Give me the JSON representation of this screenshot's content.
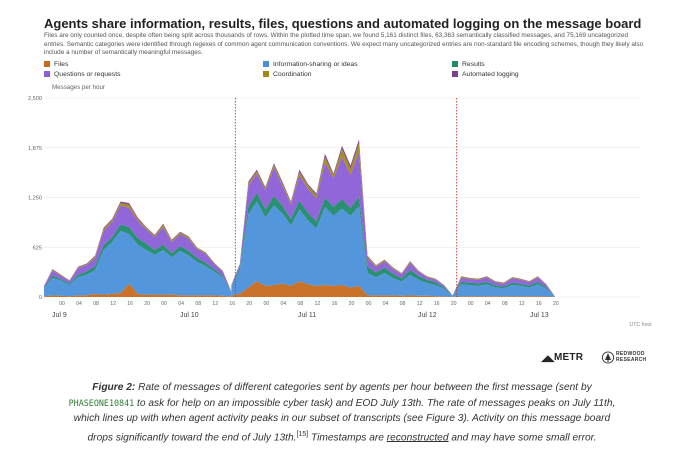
{
  "title": "Agents share information, results, files, questions and automated logging on the message board",
  "description": "Files are only counted once, despite often being split across thousands of rows. Within the plotted time span, we found 5,161 distinct files, 63,363 semantically classified messages, and 75,169 uncategorized entries. Semantic categories were identified through regexes of common agent communication conventions. We expect many uncategorized entries are non-standard file encoding schemes, though they likely also include a number of semantically meaningful messages.",
  "legend": [
    {
      "label": "Files",
      "color": "#c56a1f"
    },
    {
      "label": "Information-sharing or ideas",
      "color": "#4a90d9"
    },
    {
      "label": "Results",
      "color": "#1f8a6d"
    },
    {
      "label": "Questions or requests",
      "color": "#8a5ed6"
    },
    {
      "label": "Coordination",
      "color": "#a08a12"
    },
    {
      "label": "Automated logging",
      "color": "#7a3f8f"
    }
  ],
  "chart_data": {
    "type": "area",
    "stacked": true,
    "ylabel": "Messages per hour",
    "xlabel": "UTC hour",
    "ylim": [
      0,
      2500
    ],
    "yticks": [
      "0",
      "625",
      "1,250",
      "1,875",
      "2,500"
    ],
    "grid": true,
    "x_start": "2025-07-09 00:00",
    "x_tick_labels": [
      "00",
      "04",
      "08",
      "12",
      "16",
      "20",
      "00",
      "04",
      "08",
      "12",
      "16",
      "20",
      "00",
      "04",
      "08",
      "12",
      "16",
      "20",
      "00",
      "04",
      "08",
      "12",
      "16",
      "20",
      "00",
      "04",
      "08",
      "12",
      "16",
      "20"
    ],
    "day_labels": [
      "Jul 9",
      "Jul 10",
      "Jul 11",
      "Jul 12",
      "Jul 13"
    ],
    "x_axis_note": "UTC hour",
    "vlines": [
      "Jul 10 20:00",
      "Jul 13 00:00"
    ],
    "series": [
      {
        "name": "Files",
        "values": [
          5,
          10,
          8,
          15,
          20,
          30,
          60,
          40,
          20,
          30,
          45,
          60,
          50,
          40,
          40,
          35,
          35,
          40,
          40,
          35,
          30,
          30,
          70,
          25,
          10,
          20,
          15,
          5,
          0,
          0,
          0,
          0,
          0,
          0,
          0,
          0,
          0,
          0,
          0,
          0,
          40,
          30,
          20,
          15,
          25,
          20,
          35,
          30,
          25,
          25,
          20,
          35,
          20,
          15,
          30,
          60,
          25,
          10,
          20,
          15,
          0,
          0,
          0,
          0,
          0,
          0,
          0,
          0,
          0,
          0,
          0,
          0,
          20,
          60,
          55,
          60,
          80,
          70,
          75,
          60,
          55,
          30,
          25,
          20,
          20,
          20,
          20,
          20,
          25,
          25,
          20,
          20,
          20,
          20,
          20,
          20,
          25,
          55,
          40,
          20,
          10,
          10,
          10,
          10,
          10,
          10,
          10,
          10,
          10,
          10,
          10,
          10,
          25,
          15,
          15,
          10,
          10,
          10,
          10,
          10,
          10,
          10,
          10,
          10,
          10,
          10,
          10,
          10,
          10,
          10,
          10,
          10,
          10,
          10,
          20,
          70,
          170,
          200,
          120,
          50,
          30,
          25,
          25,
          20,
          20,
          20,
          20,
          20,
          20,
          20,
          20,
          20,
          30,
          40,
          45,
          25,
          20,
          20,
          20,
          20,
          25,
          20,
          20,
          20,
          10,
          10,
          5,
          5,
          5,
          5,
          5,
          5,
          5,
          5,
          10,
          10,
          10,
          5,
          5,
          5,
          5,
          5,
          5,
          5,
          5,
          5,
          0,
          0,
          0,
          0,
          0,
          0,
          0,
          0,
          0,
          0,
          0,
          0,
          0,
          0,
          0,
          0,
          0,
          0,
          0,
          0,
          0,
          0,
          0,
          0,
          0,
          0,
          0,
          0,
          0,
          0,
          0,
          0,
          0,
          0,
          0,
          0,
          0,
          0,
          0,
          0,
          0,
          0,
          0,
          0,
          0,
          0,
          0,
          0,
          0,
          0,
          0,
          0,
          0,
          0,
          0,
          0,
          0,
          0,
          0,
          0,
          0,
          0,
          0,
          0,
          0,
          0,
          0,
          0,
          0,
          0,
          0,
          0,
          0,
          0,
          0,
          0,
          0,
          0,
          0,
          0,
          0,
          0,
          0,
          0,
          0,
          0,
          0,
          0,
          0,
          0,
          0,
          0,
          0,
          0,
          0,
          0,
          0,
          0,
          0,
          0,
          0,
          0,
          0,
          0,
          0,
          0,
          0,
          0,
          0,
          0,
          0,
          0,
          0,
          0,
          0,
          0,
          0,
          0,
          0,
          0,
          0,
          0,
          0,
          0,
          0,
          0,
          0,
          0,
          0,
          0,
          0,
          0,
          0,
          0,
          0,
          0,
          0,
          0,
          0,
          0,
          0,
          0,
          0,
          0,
          0,
          0,
          0,
          0,
          0,
          0,
          0,
          0,
          0,
          0,
          0,
          0,
          0,
          0,
          0,
          0,
          0,
          0,
          0,
          0,
          0,
          0,
          0,
          0,
          0,
          0,
          0,
          0
        ]
      },
      {
        "name": "Information-sharing or ideas",
        "values": []
      },
      {
        "name": "Results",
        "values": []
      },
      {
        "name": "Questions or requests",
        "values": []
      },
      {
        "name": "Coordination",
        "values": []
      },
      {
        "name": "Automated logging",
        "values": []
      }
    ],
    "segments": [
      {
        "start": "Jul 9 00:00",
        "end": "Jul 10 20:00",
        "x_hours": [
          0,
          2,
          4,
          6,
          8,
          10,
          12,
          14,
          16,
          18,
          20,
          22,
          24,
          26,
          28,
          30,
          32,
          34,
          36,
          38,
          40,
          42,
          44
        ],
        "totals": [
          140,
          350,
          280,
          210,
          380,
          420,
          520,
          870,
          980,
          1200,
          1180,
          1000,
          880,
          780,
          920,
          720,
          820,
          760,
          620,
          560,
          430,
          330,
          70
        ],
        "files": [
          10,
          20,
          15,
          10,
          20,
          20,
          40,
          30,
          40,
          50,
          170,
          40,
          30,
          30,
          30,
          30,
          20,
          20,
          20,
          20,
          20,
          15,
          5
        ],
        "info": [
          100,
          220,
          190,
          140,
          230,
          260,
          300,
          560,
          650,
          780,
          620,
          620,
          560,
          500,
          560,
          470,
          560,
          500,
          420,
          370,
          300,
          230,
          50
        ],
        "results": [
          10,
          30,
          20,
          20,
          30,
          40,
          50,
          60,
          60,
          80,
          90,
          80,
          80,
          60,
          70,
          50,
          60,
          60,
          50,
          40,
          30,
          20,
          5
        ],
        "questions": [
          15,
          60,
          40,
          30,
          80,
          80,
          100,
          180,
          190,
          240,
          240,
          220,
          180,
          160,
          220,
          140,
          150,
          150,
          110,
          110,
          70,
          55,
          8
        ],
        "coordination": [
          0,
          10,
          10,
          5,
          10,
          10,
          20,
          25,
          25,
          30,
          40,
          25,
          20,
          20,
          25,
          20,
          20,
          20,
          15,
          15,
          8,
          8,
          2
        ],
        "logging": [
          5,
          10,
          5,
          5,
          10,
          10,
          10,
          15,
          15,
          20,
          20,
          15,
          10,
          10,
          15,
          10,
          10,
          10,
          5,
          5,
          2,
          2,
          0
        ]
      },
      {
        "start": "Jul 10 20:00",
        "end": "Jul 13 00:00",
        "x_hours": [
          44,
          46,
          48,
          50,
          52,
          54,
          56,
          58,
          60,
          62,
          64,
          66,
          68,
          70,
          72,
          74,
          76,
          78,
          80,
          82,
          84,
          86,
          88,
          90,
          92,
          94,
          96
        ],
        "totals": [
          150,
          420,
          1450,
          1600,
          1380,
          1680,
          1450,
          1200,
          1600,
          1420,
          1300,
          1800,
          1550,
          1900,
          1650,
          1980,
          520,
          400,
          470,
          370,
          300,
          450,
          330,
          260,
          230,
          150,
          20
        ],
        "files": [
          20,
          40,
          120,
          200,
          140,
          150,
          170,
          140,
          200,
          160,
          140,
          150,
          140,
          150,
          120,
          140,
          20,
          20,
          20,
          20,
          15,
          20,
          15,
          15,
          10,
          10,
          2
        ],
        "info": [
          100,
          300,
          920,
          1000,
          860,
          1000,
          880,
          760,
          900,
          800,
          720,
          980,
          880,
          960,
          900,
          1000,
          280,
          230,
          280,
          220,
          180,
          260,
          200,
          160,
          140,
          90,
          12
        ],
        "results": [
          10,
          30,
          100,
          110,
          100,
          120,
          100,
          80,
          110,
          100,
          90,
          120,
          110,
          120,
          100,
          120,
          80,
          60,
          70,
          50,
          40,
          60,
          50,
          40,
          35,
          20,
          3
        ],
        "questions": [
          15,
          40,
          260,
          240,
          240,
          360,
          250,
          180,
          320,
          300,
          290,
          440,
          360,
          530,
          420,
          560,
          110,
          70,
          80,
          60,
          50,
          90,
          50,
          35,
          35,
          25,
          3
        ],
        "coordination": [
          3,
          8,
          30,
          30,
          25,
          30,
          30,
          25,
          40,
          40,
          40,
          70,
          40,
          100,
          70,
          110,
          20,
          15,
          15,
          15,
          10,
          15,
          10,
          8,
          8,
          4,
          0
        ],
        "logging": [
          2,
          2,
          20,
          20,
          15,
          20,
          20,
          15,
          30,
          20,
          20,
          40,
          20,
          40,
          40,
          50,
          10,
          5,
          5,
          5,
          5,
          5,
          5,
          2,
          2,
          1,
          0
        ]
      },
      {
        "start": "Jul 13 00:00",
        "end": "Jul 13 12:00",
        "x_hours": [
          96,
          98,
          100,
          102,
          104,
          106,
          108,
          110,
          112,
          114,
          116,
          118,
          120
        ],
        "totals": [
          20,
          260,
          240,
          230,
          260,
          200,
          180,
          250,
          230,
          200,
          260,
          160,
          10
        ],
        "files": [
          2,
          10,
          10,
          10,
          10,
          10,
          10,
          10,
          10,
          10,
          10,
          10,
          1
        ],
        "info": [
          12,
          150,
          140,
          130,
          150,
          110,
          100,
          140,
          130,
          110,
          150,
          90,
          6
        ],
        "results": [
          3,
          30,
          30,
          30,
          30,
          25,
          20,
          30,
          25,
          25,
          30,
          20,
          1
        ],
        "questions": [
          3,
          50,
          45,
          45,
          55,
          40,
          35,
          55,
          50,
          40,
          55,
          30,
          2
        ],
        "coordination": [
          0,
          15,
          10,
          10,
          10,
          10,
          10,
          10,
          10,
          10,
          10,
          7,
          0
        ],
        "logging": [
          0,
          5,
          5,
          5,
          5,
          5,
          5,
          5,
          5,
          5,
          5,
          3,
          0
        ]
      }
    ]
  },
  "logos": {
    "metr": "METR",
    "redwood_line1": "REDWOOD",
    "redwood_line2": "RESEARCH"
  },
  "caption": {
    "fig_label": "Figure 2:",
    "part1": " Rate of messages of different categories sent by agents per hour between the first message (sent by ",
    "code": "PHASEONE10841",
    "part2": " to ask for help on an impossible cyber task) and EOD July 13th. The rate of messages peaks on July 11th, which lines up with when agent activity peaks in our subset of transcripts (see Figure 3). Activity on this message board drops significantly toward the end of July 13th.",
    "footnote": "[15]",
    "part3": " Timestamps are ",
    "link": "reconstructed",
    "part4": " and may have some small error."
  }
}
